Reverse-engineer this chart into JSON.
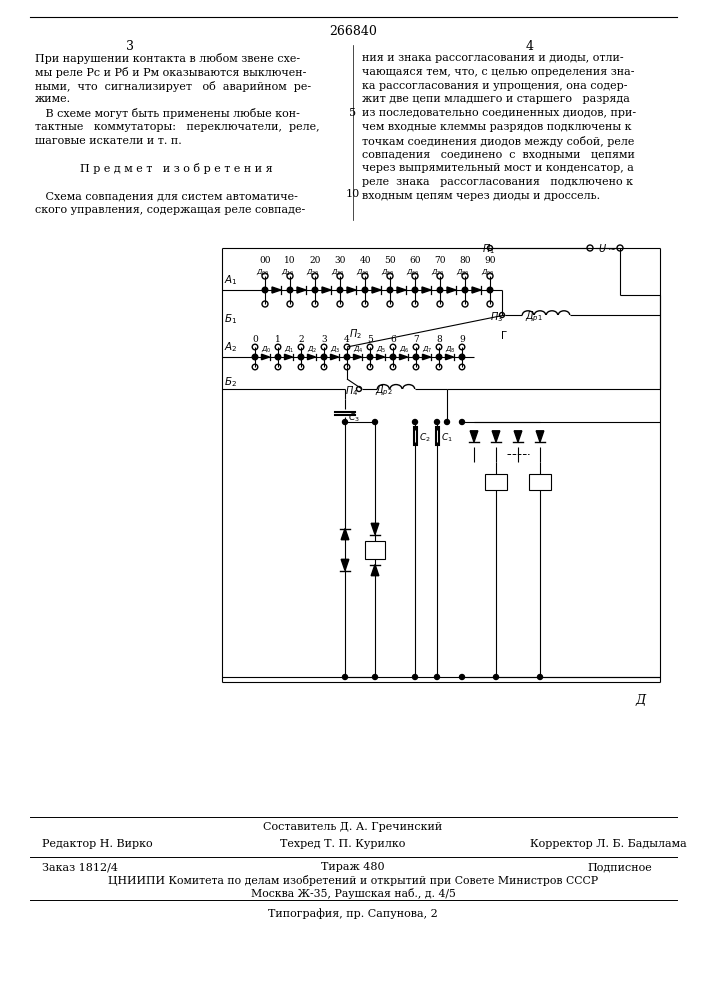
{
  "page_number_center": "266840",
  "col_left": "3",
  "col_right": "4",
  "footer_composer": "Составитель Д. А. Гречинский",
  "footer_editor": "Редактор Н. Вирко",
  "footer_techred": "Техред Т. П. Курилко",
  "footer_corrector": "Корректор Л. Б. Бадылама",
  "footer_order": "Заказ 1812/4",
  "footer_circulation": "Тираж 480",
  "footer_subscription": "Подписное",
  "footer_org": "ЦНИИПИ Комитета по делам изобретений и открытий при Совете Министров СССР",
  "footer_address": "Москва Ж-35, Раушская наб., д. 4/5",
  "footer_print": "Типография, пр. Сапунова, 2",
  "bg_color": "#ffffff",
  "text_color": "#000000",
  "left_text_lines": [
    "При нарушении контакта в любом звене схе-",
    "мы реле Рс и Рб и Рм оказываются выключен-",
    "ными,  что  сигнализирует   об  аварийном  ре-",
    "жиме.",
    "   В схеме могут быть применены любые кон-",
    "тактные   коммутаторы:   переключатели,  реле,",
    "шаговые искатели и т. п.",
    "",
    "П р е д м е т   и з о б р е т е н и я",
    "",
    "   Схема совпадения для систем автоматиче-",
    "ского управления, содержащая реле совпаде-"
  ],
  "right_text_lines": [
    "ния и знака рассогласования и диоды, отли-",
    "чающаяся тем, что, с целью определения зна-",
    "ка рассогласования и упрощения, она содер-",
    "жит две цепи младшего и старшего   разряда",
    "из последовательно соединенных диодов, при-",
    "чем входные клеммы разрядов подключены к",
    "точкам соединения диодов между собой, реле",
    "совпадения   соединено  с  входными   цепями",
    "через выпрямительный мост и конденсатор, а",
    "реле  знака   рассогласования   подключено к",
    "входным цепям через диоды и дроссель."
  ]
}
